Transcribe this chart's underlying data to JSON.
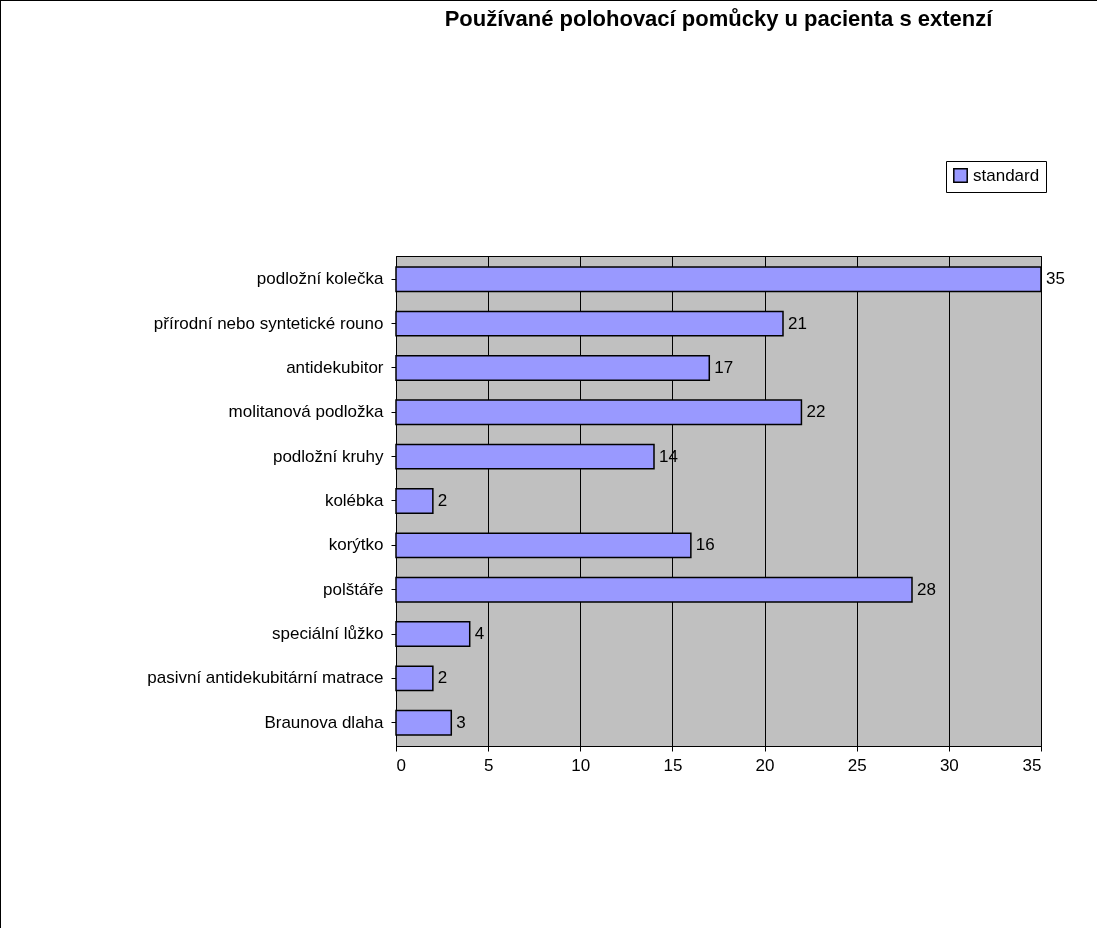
{
  "chart_data": {
    "type": "bar",
    "orientation": "horizontal",
    "title": "Používané polohovací pomůcky u pacienta s extenzí",
    "categories": [
      "podložní kolečka",
      "přírodní nebo syntetické rouno",
      "antidekubitor",
      "molitanová podložka",
      "podložní kruhy",
      "kolébka",
      "korýtko",
      "polštáře",
      "speciální lůžko",
      "pasivní antidekubitární matrace",
      "Braunova dlaha"
    ],
    "series": [
      {
        "name": "standard",
        "color": "#9999ff",
        "values": [
          35,
          21,
          17,
          22,
          14,
          2,
          16,
          28,
          4,
          2,
          3
        ]
      }
    ],
    "xlim": [
      0,
      35
    ],
    "xticks": [
      0,
      5,
      10,
      15,
      20,
      25,
      30,
      35
    ],
    "grid": "x",
    "legend": "top right",
    "data_labels": true
  }
}
